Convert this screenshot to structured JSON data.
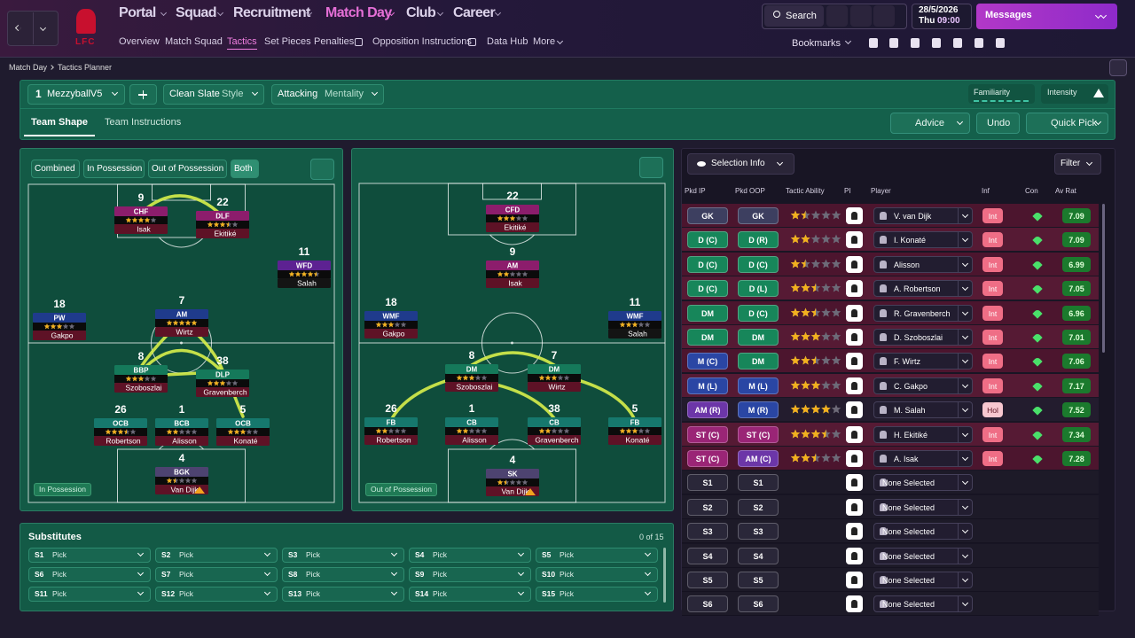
{
  "header": {
    "club": "LFC",
    "nav": [
      "Portal",
      "Squad",
      "Recruitment",
      "Match Day",
      "Club",
      "Career"
    ],
    "subnav": [
      "Overview",
      "Match Squad",
      "Tactics",
      "Set Pieces",
      "Penalties",
      "Opposition Instructions",
      "Data Hub",
      "More"
    ],
    "search": "Search",
    "date": "28/5/2026",
    "day": "Thu",
    "time": "09:00",
    "messages": "Messages",
    "bookmarks": "Bookmarks"
  },
  "breadcrumb": [
    "Match Day",
    "Tactics Planner"
  ],
  "toolbar": {
    "slot": "1",
    "tactic": "MezzyballV5",
    "style_value": "Clean Slate",
    "style_label": "Style",
    "mentality_value": "Attacking",
    "mentality_label": "Mentality",
    "familiarity": "Familiarity",
    "intensity": "Intensity"
  },
  "tabs": [
    "Team Shape",
    "Team Instructions"
  ],
  "actions": [
    "Advice",
    "Undo",
    "Quick Pick"
  ],
  "pitch_filters": [
    "Combined",
    "In Possession",
    "Out of Possession",
    "Both"
  ],
  "in_possession": {
    "label": "In Possession",
    "players": [
      {
        "number": 9,
        "role": "CHF",
        "name": "Isak",
        "stars": 4
      },
      {
        "number": 22,
        "role": "DLF",
        "name": "Ekitiké",
        "stars": 3.5
      },
      {
        "number": 11,
        "role": "WFD",
        "name": "Salah",
        "stars": 4.5
      },
      {
        "number": 18,
        "role": "PW",
        "name": "Gakpo",
        "stars": 3
      },
      {
        "number": 7,
        "role": "AM",
        "name": "Wirtz",
        "stars": 5
      },
      {
        "number": 8,
        "role": "BBP",
        "name": "Szoboszlai",
        "stars": 3
      },
      {
        "number": 38,
        "role": "DLP",
        "name": "Gravenberch",
        "stars": 3
      },
      {
        "number": 26,
        "role": "OCB",
        "name": "Robertson",
        "stars": 3.5
      },
      {
        "number": 1,
        "role": "BCB",
        "name": "Alisson",
        "stars": 2
      },
      {
        "number": 5,
        "role": "OCB",
        "name": "Konaté",
        "stars": 3
      },
      {
        "number": 4,
        "role": "BGK",
        "name": "Van Dijk",
        "stars": 1.5
      }
    ]
  },
  "out_of_possession": {
    "label": "Out of Possession",
    "players": [
      {
        "number": 22,
        "role": "CFD",
        "name": "Ekitiké",
        "stars": 3
      },
      {
        "number": 9,
        "role": "AM",
        "name": "Isak",
        "stars": 2
      },
      {
        "number": 18,
        "role": "WMF",
        "name": "Gakpo",
        "stars": 3
      },
      {
        "number": 11,
        "role": "WMF",
        "name": "Salah",
        "stars": 3
      },
      {
        "number": 8,
        "role": "DM",
        "name": "Szoboszlai",
        "stars": 3
      },
      {
        "number": 7,
        "role": "DM",
        "name": "Wirtz",
        "stars": 3
      },
      {
        "number": 26,
        "role": "FB",
        "name": "Robertson",
        "stars": 2
      },
      {
        "number": 1,
        "role": "CB",
        "name": "Alisson",
        "stars": 2
      },
      {
        "number": 38,
        "role": "CB",
        "name": "Gravenberch",
        "stars": 2
      },
      {
        "number": 5,
        "role": "FB",
        "name": "Konaté",
        "stars": 3
      },
      {
        "number": 4,
        "role": "SK",
        "name": "Van Dijk",
        "stars": 1.5
      }
    ]
  },
  "substitutes": {
    "title": "Substitutes",
    "count": "0 of 15",
    "placeholder": "Pick",
    "slots": [
      "S1",
      "S2",
      "S3",
      "S4",
      "S5",
      "S6",
      "S7",
      "S8",
      "S9",
      "S10",
      "S11",
      "S12",
      "S13",
      "S14",
      "S15"
    ]
  },
  "selection": {
    "view": "Selection Info",
    "filter": "Filter",
    "columns": [
      "Pkd IP",
      "Pkd OOP",
      "Tactic Ability",
      "PI",
      "Player",
      "Inf",
      "Con",
      "Av Rat"
    ],
    "rows": [
      {
        "ip": "GK",
        "oop": "GK",
        "ability": 1.5,
        "player": "V. van Dijk",
        "inf": "Int",
        "rating": "7.09"
      },
      {
        "ip": "D (C)",
        "oop": "D (R)",
        "ability": 2,
        "player": "I. Konaté",
        "inf": "Int",
        "rating": "7.09"
      },
      {
        "ip": "D (C)",
        "oop": "D (C)",
        "ability": 1.5,
        "player": "Alisson",
        "inf": "Int",
        "rating": "6.99"
      },
      {
        "ip": "D (C)",
        "oop": "D (L)",
        "ability": 2.5,
        "player": "A. Robertson",
        "inf": "Int",
        "rating": "7.05"
      },
      {
        "ip": "DM",
        "oop": "D (C)",
        "ability": 2.5,
        "player": "R. Gravenberch",
        "inf": "Int",
        "rating": "6.96"
      },
      {
        "ip": "DM",
        "oop": "DM",
        "ability": 3,
        "player": "D. Szoboszlai",
        "inf": "Int",
        "rating": "7.01"
      },
      {
        "ip": "M (C)",
        "oop": "DM",
        "ability": 2.5,
        "player": "F. Wirtz",
        "inf": "Int",
        "rating": "7.06"
      },
      {
        "ip": "M (L)",
        "oop": "M (L)",
        "ability": 3,
        "player": "C. Gakpo",
        "inf": "Int",
        "rating": "7.17"
      },
      {
        "ip": "AM (R)",
        "oop": "M (R)",
        "ability": 4,
        "player": "M. Salah",
        "inf": "Hol",
        "rating": "7.52"
      },
      {
        "ip": "ST (C)",
        "oop": "ST (C)",
        "ability": 3.5,
        "player": "H. Ekitiké",
        "inf": "Int",
        "rating": "7.34"
      },
      {
        "ip": "ST (C)",
        "oop": "AM (C)",
        "ability": 2.5,
        "player": "A. Isak",
        "inf": "Int",
        "rating": "7.28"
      }
    ],
    "bench": [
      {
        "ip": "S1",
        "oop": "S1",
        "player": "None Selected"
      },
      {
        "ip": "S2",
        "oop": "S2",
        "player": "None Selected"
      },
      {
        "ip": "S3",
        "oop": "S3",
        "player": "None Selected"
      },
      {
        "ip": "S4",
        "oop": "S4",
        "player": "None Selected"
      },
      {
        "ip": "S5",
        "oop": "S5",
        "player": "None Selected"
      },
      {
        "ip": "S6",
        "oop": "S6",
        "player": "None Selected"
      }
    ]
  }
}
